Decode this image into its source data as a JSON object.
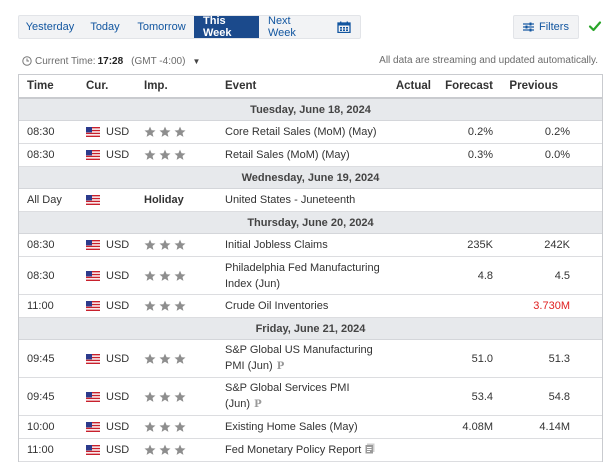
{
  "tabs": [
    {
      "label": "Yesterday",
      "active": false
    },
    {
      "label": "Today",
      "active": false
    },
    {
      "label": "Tomorrow",
      "active": false
    },
    {
      "label": "This Week",
      "active": true
    },
    {
      "label": "Next Week",
      "active": false
    }
  ],
  "calendar_icon": "calendar-icon",
  "filters": {
    "label": "Filters",
    "icon": "sliders-icon"
  },
  "check_icon": "checkmark-icon",
  "colors": {
    "tab_active": "#1b4a8c",
    "link": "#1256a0",
    "negative": "#e02020",
    "check": "#2aa52a",
    "day_row": "#e7e9ec"
  },
  "time_info": {
    "prefix": "Current Time:",
    "time": "17:28",
    "timezone": "(GMT -4:00)"
  },
  "streaming_note": "All data are streaming and updated automatically.",
  "columns": {
    "time": "Time",
    "cur": "Cur.",
    "imp": "Imp.",
    "event": "Event",
    "actual": "Actual",
    "forecast": "Forecast",
    "previous": "Previous"
  },
  "days": [
    {
      "label": "Tuesday, June 18, 2024",
      "events": [
        {
          "time": "08:30",
          "cur": "USD",
          "stars": 3,
          "event": "Core Retail Sales (MoM) (May)",
          "actual": "",
          "forecast": "0.2%",
          "previous": "0.2%"
        },
        {
          "time": "08:30",
          "cur": "USD",
          "stars": 3,
          "event": "Retail Sales (MoM) (May)",
          "actual": "",
          "forecast": "0.3%",
          "previous": "0.0%"
        }
      ]
    },
    {
      "label": "Wednesday, June 19, 2024",
      "events": [
        {
          "time": "All Day",
          "cur": "",
          "holiday": "Holiday",
          "event": "United States - Juneteenth",
          "actual": "",
          "forecast": "",
          "previous": ""
        }
      ]
    },
    {
      "label": "Thursday, June 20, 2024",
      "events": [
        {
          "time": "08:30",
          "cur": "USD",
          "stars": 3,
          "event": "Initial Jobless Claims",
          "actual": "",
          "forecast": "235K",
          "previous": "242K"
        },
        {
          "time": "08:30",
          "cur": "USD",
          "stars": 3,
          "event": "Philadelphia Fed Manufacturing Index (Jun)",
          "actual": "",
          "forecast": "4.8",
          "previous": "4.5"
        },
        {
          "time": "11:00",
          "cur": "USD",
          "stars": 3,
          "event": "Crude Oil Inventories",
          "actual": "",
          "forecast": "",
          "previous": "3.730M",
          "previous_negative": true
        }
      ]
    },
    {
      "label": "Friday, June 21, 2024",
      "events": [
        {
          "time": "09:45",
          "cur": "USD",
          "stars": 3,
          "event": "S&P Global US Manufacturing PMI (Jun)",
          "badge": "P",
          "actual": "",
          "forecast": "51.0",
          "previous": "51.3"
        },
        {
          "time": "09:45",
          "cur": "USD",
          "stars": 3,
          "event": "S&P Global Services PMI (Jun)",
          "badge": "P",
          "actual": "",
          "forecast": "53.4",
          "previous": "54.8"
        },
        {
          "time": "10:00",
          "cur": "USD",
          "stars": 3,
          "event": "Existing Home Sales (May)",
          "actual": "",
          "forecast": "4.08M",
          "previous": "4.14M"
        },
        {
          "time": "11:00",
          "cur": "USD",
          "stars": 3,
          "event": "Fed Monetary Policy Report",
          "doc": true,
          "actual": "",
          "forecast": "",
          "previous": ""
        }
      ]
    }
  ]
}
